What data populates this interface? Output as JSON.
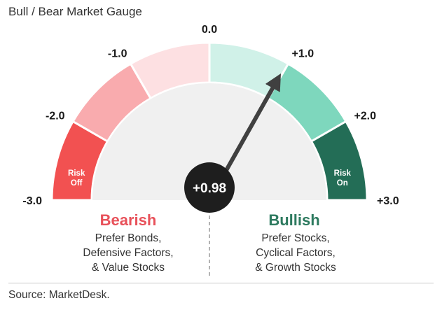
{
  "title": "Bull / Bear Market Gauge",
  "source": "Source: MarketDesk.",
  "chart_data": {
    "type": "gauge",
    "value": 0.98,
    "value_label": "+0.98",
    "range": [
      -3,
      3
    ],
    "ticks": [
      {
        "value": -3,
        "label": "-3.0"
      },
      {
        "value": -2,
        "label": "-2.0"
      },
      {
        "value": -1,
        "label": "-1.0"
      },
      {
        "value": 0,
        "label": "0.0"
      },
      {
        "value": 1,
        "label": "+1.0"
      },
      {
        "value": 2,
        "label": "+2.0"
      },
      {
        "value": 3,
        "label": "+3.0"
      }
    ],
    "segments": [
      {
        "from": -3,
        "to": -2,
        "color": "#f25151",
        "label": [
          "Risk",
          "Off"
        ]
      },
      {
        "from": -2,
        "to": -1,
        "color": "#f9abae",
        "label": []
      },
      {
        "from": -1,
        "to": 0,
        "color": "#fde0e2",
        "label": []
      },
      {
        "from": 0,
        "to": 1,
        "color": "#d0f1e8",
        "label": []
      },
      {
        "from": 1,
        "to": 2,
        "color": "#7ed7bd",
        "label": []
      },
      {
        "from": 2,
        "to": 3,
        "color": "#236d56",
        "label": [
          "Risk",
          "On"
        ]
      }
    ],
    "colors": {
      "bearish": "#e8515a",
      "bullish": "#2d7a5f",
      "inner_face": "#f0f0f0",
      "needle": "#404040",
      "hub": "#1e1e1e"
    }
  },
  "bearish": {
    "heading": "Bearish",
    "lines": [
      "Prefer Bonds,",
      "Defensive Factors,",
      "& Value Stocks"
    ]
  },
  "bullish": {
    "heading": "Bullish",
    "lines": [
      "Prefer Stocks,",
      "Cyclical Factors,",
      "& Growth Stocks"
    ]
  }
}
